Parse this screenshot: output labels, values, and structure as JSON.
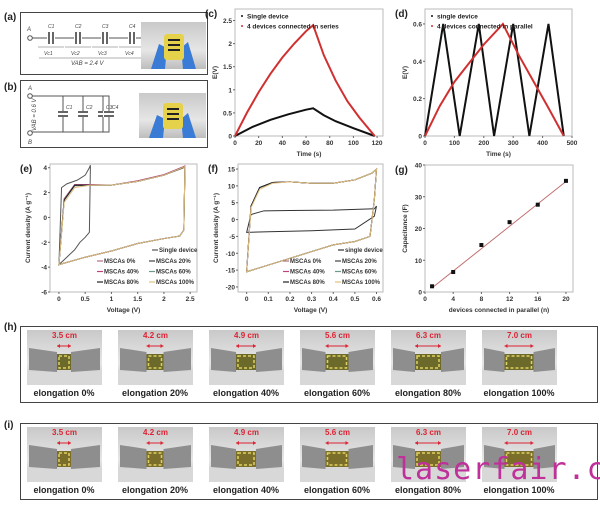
{
  "panels": {
    "a": {
      "label": "(a)",
      "nodes": [
        "A",
        "B"
      ],
      "caps": [
        "C1",
        "C2",
        "C3",
        "C4"
      ],
      "volts": [
        "Vc1",
        "Vc2",
        "Vc3",
        "Vc4"
      ],
      "total": "VAB = 2.4 V"
    },
    "b": {
      "label": "(b)",
      "nodes": [
        "A",
        "B"
      ],
      "caps": [
        "C1",
        "C2",
        "C3",
        "C4"
      ],
      "total": "VAB = 0.6 V"
    },
    "h": {
      "label": "(h)",
      "lengths": [
        "3.5 cm",
        "4.2 cm",
        "4.9 cm",
        "5.6 cm",
        "6.3 cm",
        "7.0 cm"
      ],
      "captions": [
        "elongation 0%",
        "elongation 20%",
        "elongation 40%",
        "elongation 60%",
        "elongation 80%",
        "elongation 100%"
      ]
    },
    "i": {
      "label": "(i)",
      "lengths": [
        "3.5 cm",
        "4.2 cm",
        "4.9 cm",
        "5.6 cm",
        "6.3 cm",
        "7.0 cm"
      ],
      "captions": [
        "elongation 0%",
        "elongation 20%",
        "elongation 40%",
        "elongation 60%",
        "elongation 80%",
        "elongation 100%"
      ]
    }
  },
  "watermark": "laserfair.com",
  "chart_data": [
    {
      "id": "c",
      "label": "(c)",
      "type": "line",
      "xlabel": "Time (s)",
      "ylabel": "E(V)",
      "xlim": [
        0,
        125
      ],
      "ylim": [
        0,
        2.75
      ],
      "xticks": [
        0,
        20,
        40,
        60,
        80,
        100,
        120
      ],
      "yticks": [
        0.0,
        0.5,
        1.0,
        1.5,
        2.0,
        2.5
      ],
      "legend": "top-left",
      "series": [
        {
          "name": "Single device",
          "color": "#111111",
          "x": [
            0,
            15,
            30,
            45,
            60,
            66,
            75,
            85,
            100,
            118
          ],
          "y": [
            0,
            0.2,
            0.35,
            0.47,
            0.57,
            0.6,
            0.45,
            0.32,
            0.17,
            0
          ]
        },
        {
          "name": "4 devices connected in series",
          "color": "#d03030",
          "x": [
            0,
            10,
            20,
            30,
            40,
            50,
            60,
            66,
            75,
            85,
            95,
            105,
            118
          ],
          "y": [
            0,
            0.5,
            0.95,
            1.35,
            1.7,
            2.0,
            2.27,
            2.4,
            1.75,
            1.2,
            0.75,
            0.4,
            0
          ]
        }
      ]
    },
    {
      "id": "d",
      "label": "(d)",
      "type": "line",
      "xlabel": "Time (s)",
      "ylabel": "E(V)",
      "xlim": [
        0,
        500
      ],
      "ylim": [
        0,
        0.68
      ],
      "xticks": [
        0,
        100,
        200,
        300,
        400,
        500
      ],
      "yticks": [
        0.0,
        0.2,
        0.4,
        0.6
      ],
      "legend": "top-left",
      "series": [
        {
          "name": "single device",
          "color": "#111111",
          "x": [
            0,
            62,
            118,
            183,
            235,
            300,
            355,
            420,
            472
          ],
          "y": [
            0,
            0.6,
            0,
            0.6,
            0,
            0.6,
            0,
            0.6,
            0
          ]
        },
        {
          "name": "4 devices connected in parallel",
          "color": "#d03030",
          "x": [
            0,
            50,
            100,
            150,
            200,
            265,
            320,
            370,
            420,
            472
          ],
          "y": [
            0,
            0.16,
            0.29,
            0.39,
            0.49,
            0.6,
            0.43,
            0.29,
            0.15,
            0
          ]
        }
      ]
    },
    {
      "id": "e",
      "label": "(e)",
      "type": "line",
      "xlabel": "Voltage (V)",
      "ylabel": "Current density (A g⁻¹)",
      "xlim": [
        -0.17,
        2.63
      ],
      "ylim": [
        -6,
        4.3
      ],
      "xticks": [
        0.0,
        0.5,
        1.0,
        1.5,
        2.0,
        2.5
      ],
      "yticks": [
        -6,
        -4,
        -2,
        0,
        2,
        4
      ],
      "legend": "bottom-right",
      "series": [
        {
          "name": "Single device",
          "color": "#555555",
          "x": [
            0,
            0.05,
            0.15,
            0.35,
            0.5,
            0.58,
            0.6,
            0.58,
            0.5,
            0.4,
            0.3,
            0.15,
            0
          ],
          "y": [
            -3.8,
            2.4,
            2.7,
            3.0,
            3.4,
            4.0,
            4.2,
            -1.2,
            -1.6,
            -2.0,
            -2.6,
            -3.2,
            -3.8
          ]
        },
        {
          "name": "MSCAs 0%",
          "color": "#b07080",
          "x": [
            0,
            0.1,
            0.3,
            0.6,
            1.0,
            1.5,
            2.0,
            2.35,
            2.4,
            2.38,
            2.3,
            2.0,
            1.5,
            1.0,
            0.5,
            0
          ],
          "y": [
            -3.8,
            1.5,
            2.6,
            2.6,
            2.6,
            2.9,
            3.4,
            4.0,
            4.1,
            -1.0,
            -1.5,
            -1.7,
            -2.1,
            -2.7,
            -3.2,
            -3.8
          ]
        },
        {
          "name": "MSCAs 20%",
          "color": "#444444",
          "x": [
            0,
            0.1,
            0.3,
            0.6,
            1.0,
            1.5,
            2.0,
            2.35,
            2.4,
            2.38,
            2.3,
            2.0,
            1.5,
            1.0,
            0.5,
            0
          ],
          "y": [
            -3.8,
            1.4,
            2.55,
            2.6,
            2.6,
            2.9,
            3.4,
            3.95,
            4.05,
            -1.0,
            -1.5,
            -1.7,
            -2.1,
            -2.7,
            -3.2,
            -3.8
          ]
        },
        {
          "name": "MSCAs 40%",
          "color": "#c04080",
          "x": [
            0,
            0.1,
            0.3,
            0.6,
            1.0,
            1.5,
            2.0,
            2.35,
            2.4,
            2.38,
            2.3,
            2.0,
            1.5,
            1.0,
            0.5,
            0
          ],
          "y": [
            -3.8,
            1.5,
            2.65,
            2.65,
            2.6,
            2.95,
            3.45,
            4.05,
            4.15,
            -1.0,
            -1.5,
            -1.7,
            -2.1,
            -2.7,
            -3.2,
            -3.8
          ]
        },
        {
          "name": "MSCAs 60%",
          "color": "#6a9a8a",
          "x": [
            0,
            0.1,
            0.3,
            0.6,
            1.0,
            1.5,
            2.0,
            2.35,
            2.4,
            2.38,
            2.3,
            2.0,
            1.5,
            1.0,
            0.5,
            0
          ],
          "y": [
            -3.8,
            1.45,
            2.6,
            2.6,
            2.6,
            2.9,
            3.4,
            4.0,
            4.1,
            -1.0,
            -1.5,
            -1.7,
            -2.1,
            -2.7,
            -3.2,
            -3.8
          ]
        },
        {
          "name": "MSCAs 80%",
          "color": "#222222",
          "x": [
            0,
            0.1,
            0.3,
            0.6,
            1.0,
            1.5,
            2.0,
            2.35,
            2.4,
            2.38,
            2.3,
            2.0,
            1.5,
            1.0,
            0.5,
            0
          ],
          "y": [
            -3.8,
            1.4,
            2.6,
            2.6,
            2.6,
            2.9,
            3.4,
            4.0,
            4.1,
            -1.0,
            -1.5,
            -1.7,
            -2.1,
            -2.7,
            -3.2,
            -3.8
          ]
        },
        {
          "name": "MSCAs 100%",
          "color": "#e0c080",
          "x": [
            0,
            0.1,
            0.3,
            0.6,
            1.0,
            1.5,
            2.0,
            2.35,
            2.4,
            2.38,
            2.3,
            2.0,
            1.5,
            1.0,
            0.5,
            0
          ],
          "y": [
            -3.8,
            1.2,
            2.4,
            2.6,
            2.6,
            2.9,
            3.4,
            4.0,
            4.1,
            -1.0,
            -1.5,
            -1.7,
            -2.1,
            -2.7,
            -3.2,
            -3.8
          ]
        }
      ]
    },
    {
      "id": "f",
      "label": "(f)",
      "type": "line",
      "xlabel": "Voltage (V)",
      "ylabel": "Current density (A g⁻¹)",
      "xlim": [
        -0.04,
        0.63
      ],
      "ylim": [
        -21.5,
        16.5
      ],
      "xticks": [
        0.0,
        0.1,
        0.2,
        0.3,
        0.4,
        0.5,
        0.6
      ],
      "yticks": [
        -20,
        -15,
        -10,
        -5,
        0,
        5,
        10,
        15
      ],
      "legend": "bottom-right",
      "series": [
        {
          "name": "single device",
          "color": "#333333",
          "x": [
            0,
            0.02,
            0.08,
            0.2,
            0.4,
            0.59,
            0.6,
            0.59,
            0.5,
            0.3,
            0.1,
            0
          ],
          "y": [
            -3.8,
            1.5,
            2.6,
            2.7,
            2.8,
            3.2,
            4.0,
            1.0,
            -2.8,
            -3.3,
            -3.6,
            -3.8
          ]
        },
        {
          "name": "MSCAs 0%",
          "color": "#b07080",
          "x": [
            0,
            0.02,
            0.06,
            0.12,
            0.2,
            0.3,
            0.4,
            0.5,
            0.58,
            0.6,
            0.59,
            0.57,
            0.5,
            0.4,
            0.3,
            0.2,
            0.1,
            0
          ],
          "y": [
            -15.5,
            4,
            9.5,
            11,
            11.2,
            10.8,
            10.8,
            11.8,
            13.8,
            15,
            6,
            -5,
            -6.5,
            -7.5,
            -9.5,
            -11.5,
            -13.5,
            -15.5
          ]
        },
        {
          "name": "MSCAs 20%",
          "color": "#444444",
          "x": [
            0,
            0.02,
            0.06,
            0.12,
            0.2,
            0.3,
            0.4,
            0.5,
            0.58,
            0.6,
            0.59,
            0.57,
            0.5,
            0.4,
            0.3,
            0.2,
            0.1,
            0
          ],
          "y": [
            -15.5,
            4,
            9.5,
            11,
            11.2,
            10.8,
            10.8,
            11.8,
            13.8,
            15,
            6,
            -5,
            -6.5,
            -7.5,
            -9.5,
            -11.5,
            -13.5,
            -15.5
          ]
        },
        {
          "name": "MSCAs 40%",
          "color": "#c04080",
          "x": [
            0,
            0.02,
            0.06,
            0.12,
            0.2,
            0.3,
            0.4,
            0.5,
            0.58,
            0.6,
            0.59,
            0.57,
            0.5,
            0.4,
            0.3,
            0.2,
            0.1,
            0
          ],
          "y": [
            -15.5,
            4,
            9.5,
            11,
            11.2,
            10.8,
            10.8,
            11.8,
            13.8,
            15,
            6,
            -5,
            -6.5,
            -7.5,
            -9.5,
            -11.5,
            -13.5,
            -15.5
          ]
        },
        {
          "name": "MSCAs 60%",
          "color": "#6a9a8a",
          "x": [
            0,
            0.02,
            0.06,
            0.12,
            0.2,
            0.3,
            0.4,
            0.5,
            0.58,
            0.6,
            0.59,
            0.57,
            0.5,
            0.4,
            0.3,
            0.2,
            0.1,
            0
          ],
          "y": [
            -15.5,
            4,
            9.5,
            11,
            11.2,
            10.8,
            10.8,
            11.8,
            13.8,
            15,
            6,
            -5,
            -6.5,
            -7.5,
            -9.5,
            -11.5,
            -13.5,
            -15.5
          ]
        },
        {
          "name": "MSCAs 80%",
          "color": "#222222",
          "x": [
            0,
            0.02,
            0.06,
            0.12,
            0.2,
            0.3,
            0.4,
            0.5,
            0.58,
            0.6,
            0.59,
            0.57,
            0.5,
            0.4,
            0.3,
            0.2,
            0.1,
            0
          ],
          "y": [
            -15.5,
            4,
            9.5,
            11,
            11.2,
            10.8,
            10.8,
            11.8,
            13.8,
            15,
            6,
            -5,
            -6.5,
            -7.5,
            -9.5,
            -11.5,
            -13.5,
            -15.5
          ]
        },
        {
          "name": "MSCAs 100%",
          "color": "#e0c080",
          "x": [
            0,
            0.02,
            0.06,
            0.12,
            0.2,
            0.3,
            0.4,
            0.5,
            0.58,
            0.6,
            0.59,
            0.57,
            0.5,
            0.4,
            0.3,
            0.2,
            0.1,
            0
          ],
          "y": [
            -15.5,
            3.5,
            9,
            10.8,
            11.2,
            10.8,
            10.8,
            11.8,
            13.8,
            15,
            6,
            -5,
            -6.5,
            -7.5,
            -9.5,
            -11.5,
            -13.5,
            -15.5
          ]
        }
      ]
    },
    {
      "id": "g",
      "label": "(g)",
      "type": "scatter",
      "xlabel": "devices connected in parallel (n)",
      "ylabel": "Capacitance (F)",
      "xlim": [
        0,
        21
      ],
      "ylim": [
        0,
        40
      ],
      "xticks": [
        0,
        4,
        8,
        12,
        16,
        20
      ],
      "yticks": [
        0,
        10,
        20,
        30,
        40
      ],
      "series": [
        {
          "color": "#111111",
          "x": [
            1,
            4,
            8,
            12,
            16,
            20
          ],
          "y": [
            1.8,
            6.3,
            14.8,
            22,
            27.5,
            35
          ]
        }
      ],
      "fit": {
        "color": "#c07070",
        "x": [
          1,
          20
        ],
        "y": [
          1.3,
          34.8
        ]
      }
    }
  ]
}
